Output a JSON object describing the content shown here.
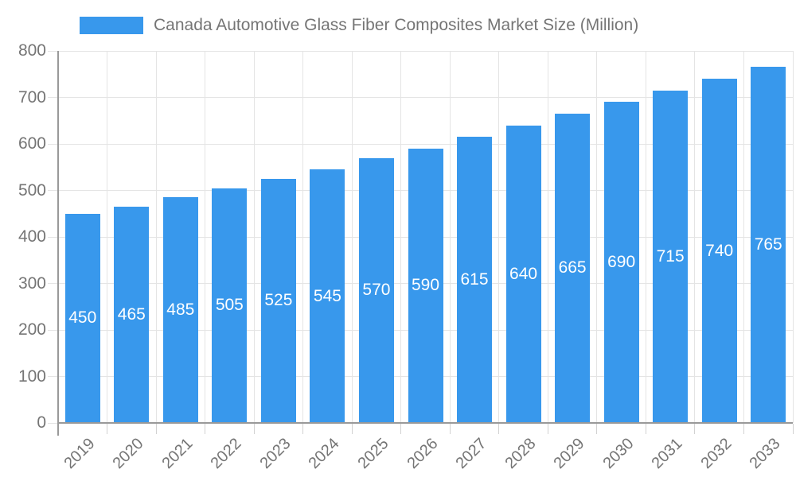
{
  "chart_data": {
    "type": "bar",
    "title": "Canada Automotive Glass Fiber Composites Market Size (Million)",
    "categories": [
      "2019",
      "2020",
      "2021",
      "2022",
      "2023",
      "2024",
      "2025",
      "2026",
      "2027",
      "2028",
      "2029",
      "2030",
      "2031",
      "2032",
      "2033"
    ],
    "values": [
      450,
      465,
      485,
      505,
      525,
      545,
      570,
      590,
      615,
      640,
      665,
      690,
      715,
      740,
      765
    ],
    "xlabel": "",
    "ylabel": "",
    "ylim": [
      0,
      800
    ],
    "ytick_step": 100,
    "yticks": [
      0,
      100,
      200,
      300,
      400,
      500,
      600,
      700,
      800
    ],
    "grid": true,
    "legend_position": "top-left",
    "value_labels": "inside-center",
    "colors": {
      "bar": "#3898EC",
      "axis_text": "#757575",
      "gridline": "#E4E4E4",
      "axis_line": "#999999",
      "tick": "#D2D2D2",
      "bar_label_text": "#FFFFFF",
      "background": "#FFFFFF"
    }
  }
}
